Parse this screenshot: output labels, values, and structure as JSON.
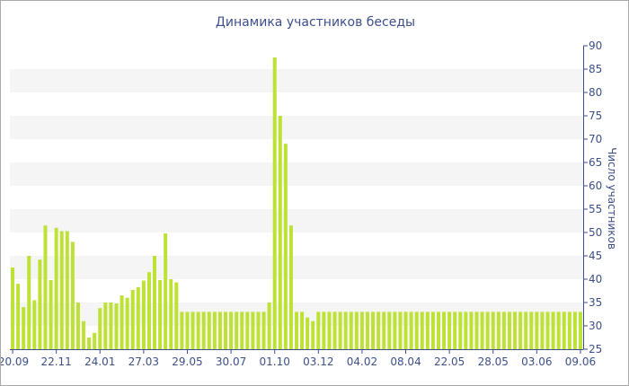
{
  "chart_data": {
    "type": "bar",
    "title": "Динамика участников беседы",
    "xlabel": "",
    "ylabel": "Число участников",
    "ylim": [
      25,
      90
    ],
    "y_ticks": [
      25,
      30,
      35,
      40,
      45,
      50,
      55,
      60,
      65,
      70,
      75,
      80,
      85,
      90
    ],
    "y_axis_side": "right",
    "grid": "alternating horizontal bands",
    "bar_color": "#bde135",
    "x_tick_labels": [
      {
        "label": "20.09",
        "index": 0
      },
      {
        "label": "22.11",
        "index": 8
      },
      {
        "label": "24.01",
        "index": 16
      },
      {
        "label": "27.03",
        "index": 24
      },
      {
        "label": "29.05",
        "index": 32
      },
      {
        "label": "30.07",
        "index": 40
      },
      {
        "label": "01.10",
        "index": 48
      },
      {
        "label": "03.12",
        "index": 56
      },
      {
        "label": "04.02",
        "index": 64
      },
      {
        "label": "08.04",
        "index": 72
      },
      {
        "label": "22.05",
        "index": 80
      },
      {
        "label": "28.05",
        "index": 88
      },
      {
        "label": "03.06",
        "index": 96
      },
      {
        "label": "09.06",
        "index": 104
      }
    ],
    "values": [
      42.5,
      39,
      34,
      45,
      35.5,
      44.2,
      51.5,
      39.8,
      51,
      50.3,
      50.3,
      48,
      35,
      31,
      27.5,
      28.5,
      33.8,
      35,
      35,
      34.8,
      36.5,
      36,
      37.7,
      38.3,
      39.7,
      41.5,
      45,
      39.8,
      49.8,
      40,
      39.3,
      33,
      33,
      33,
      33,
      33,
      33,
      33,
      33,
      33,
      33,
      33,
      33,
      33,
      33,
      33,
      33,
      35,
      87.5,
      75,
      69,
      51.5,
      33,
      33,
      31.8,
      31,
      33,
      33,
      33,
      33,
      33,
      33,
      33,
      33,
      33,
      33,
      33,
      33,
      33,
      33,
      33,
      33,
      33,
      33,
      33,
      33,
      33,
      33,
      33,
      33,
      33,
      33,
      33,
      33,
      33,
      33,
      33,
      33,
      33,
      33,
      33,
      33,
      33,
      33,
      33,
      33,
      33,
      33,
      33,
      33,
      33,
      33,
      33,
      33,
      33
    ]
  }
}
